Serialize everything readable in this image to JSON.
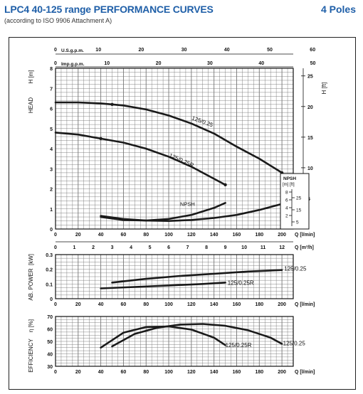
{
  "title": "LPC4 40-125 range PERFORMANCE CURVES",
  "subtitle": "(according to ISO 9906 Attachment A)",
  "poles": "4 Poles",
  "colors": {
    "title": "#1f5fa8",
    "grid": "#777777",
    "curve": "#1a1a1a"
  },
  "chart_data": [
    {
      "type": "line",
      "name": "head",
      "ylabel": "HEAD",
      "ylabel_unit": "H [m]",
      "y2label_unit": "H [ft]",
      "ylim": [
        0,
        8
      ],
      "yticks": [
        "0",
        "1",
        "2",
        "3",
        "4",
        "5",
        "6",
        "7",
        "8"
      ],
      "y2ticks": [
        "5",
        "10",
        "15",
        "20",
        "25"
      ],
      "xlim": [
        0,
        210
      ],
      "top_axis_usgpm": {
        "label": "U.S.g.p.m.",
        "ticks": [
          "0",
          "10",
          "20",
          "30",
          "40",
          "50",
          "60"
        ]
      },
      "top_axis_impgpm": {
        "label": "Imp.g.p.m.",
        "ticks": [
          "0",
          "10",
          "20",
          "30",
          "40",
          "50"
        ]
      },
      "bottom_axis_lmin": {
        "label": "Q [l/min]",
        "ticks": [
          "0",
          "20",
          "40",
          "60",
          "80",
          "100",
          "120",
          "140",
          "160",
          "180",
          "200"
        ]
      },
      "bottom_axis_m3h": {
        "label": "Q [m³/h]",
        "ticks": [
          "0",
          "1",
          "2",
          "3",
          "4",
          "5",
          "6",
          "7",
          "8",
          "9",
          "10",
          "11",
          "12"
        ]
      },
      "series": [
        {
          "name": "125/0.25",
          "x": [
            0,
            20,
            40,
            50,
            60,
            80,
            100,
            120,
            140,
            160,
            180,
            200
          ],
          "y": [
            6.3,
            6.3,
            6.25,
            6.2,
            6.15,
            5.95,
            5.65,
            5.25,
            4.75,
            4.1,
            3.5,
            2.8
          ]
        },
        {
          "name": "125/0.25R",
          "x": [
            0,
            20,
            40,
            60,
            80,
            100,
            120,
            140,
            150
          ],
          "y": [
            4.8,
            4.7,
            4.5,
            4.3,
            4.0,
            3.6,
            3.1,
            2.5,
            2.2
          ]
        },
        {
          "name": "NPSH",
          "x": [
            40,
            60,
            80,
            100,
            120,
            140,
            150
          ],
          "y": [
            0.6,
            0.45,
            0.42,
            0.5,
            0.7,
            1.05,
            1.3
          ]
        },
        {
          "name": "",
          "x": [
            40,
            60,
            80,
            100,
            120,
            140,
            160,
            180,
            200
          ],
          "y": [
            0.65,
            0.5,
            0.42,
            0.4,
            0.45,
            0.55,
            0.7,
            0.95,
            1.25
          ]
        }
      ],
      "npsh_legend": {
        "title": "NPSH",
        "units": "[m] [ft]",
        "m_ticks": [
          "2",
          "4",
          "6",
          "8"
        ],
        "ft_ticks": [
          "5",
          "15",
          "25"
        ]
      }
    },
    {
      "type": "line",
      "name": "power",
      "ylabel": "AB. POWER",
      "ylabel_unit": "[kW]",
      "ylim": [
        0,
        0.3
      ],
      "yticks": [
        "0",
        "0.1",
        "0.2",
        "0.3"
      ],
      "xlabel": "Q [l/min]",
      "xticks": [
        "0",
        "20",
        "40",
        "60",
        "80",
        "100",
        "120",
        "140",
        "160",
        "180",
        "200"
      ],
      "series": [
        {
          "name": "125/0.25",
          "x": [
            50,
            80,
            110,
            140,
            170,
            200
          ],
          "y": [
            0.11,
            0.135,
            0.155,
            0.17,
            0.185,
            0.195
          ]
        },
        {
          "name": "125/0.25R",
          "x": [
            40,
            70,
            100,
            130,
            150
          ],
          "y": [
            0.07,
            0.08,
            0.09,
            0.1,
            0.11
          ]
        }
      ]
    },
    {
      "type": "line",
      "name": "efficiency",
      "ylabel": "EFFICIENCY",
      "ylabel_unit": "η [%]",
      "ylim": [
        30,
        70
      ],
      "yticks": [
        "30",
        "40",
        "50",
        "60",
        "70"
      ],
      "xlabel": "Q [l/min]",
      "xticks": [
        "0",
        "20",
        "40",
        "60",
        "80",
        "100",
        "120",
        "140",
        "160",
        "180",
        "200"
      ],
      "series": [
        {
          "name": "125/0.25",
          "x": [
            50,
            70,
            90,
            110,
            130,
            150,
            170,
            190,
            200
          ],
          "y": [
            46,
            56,
            61,
            63.5,
            64,
            62.5,
            59,
            53,
            48
          ]
        },
        {
          "name": "125/0.25R",
          "x": [
            40,
            60,
            80,
            100,
            120,
            140,
            150
          ],
          "y": [
            45,
            57,
            61.5,
            62,
            59.5,
            53,
            47
          ]
        }
      ]
    }
  ]
}
